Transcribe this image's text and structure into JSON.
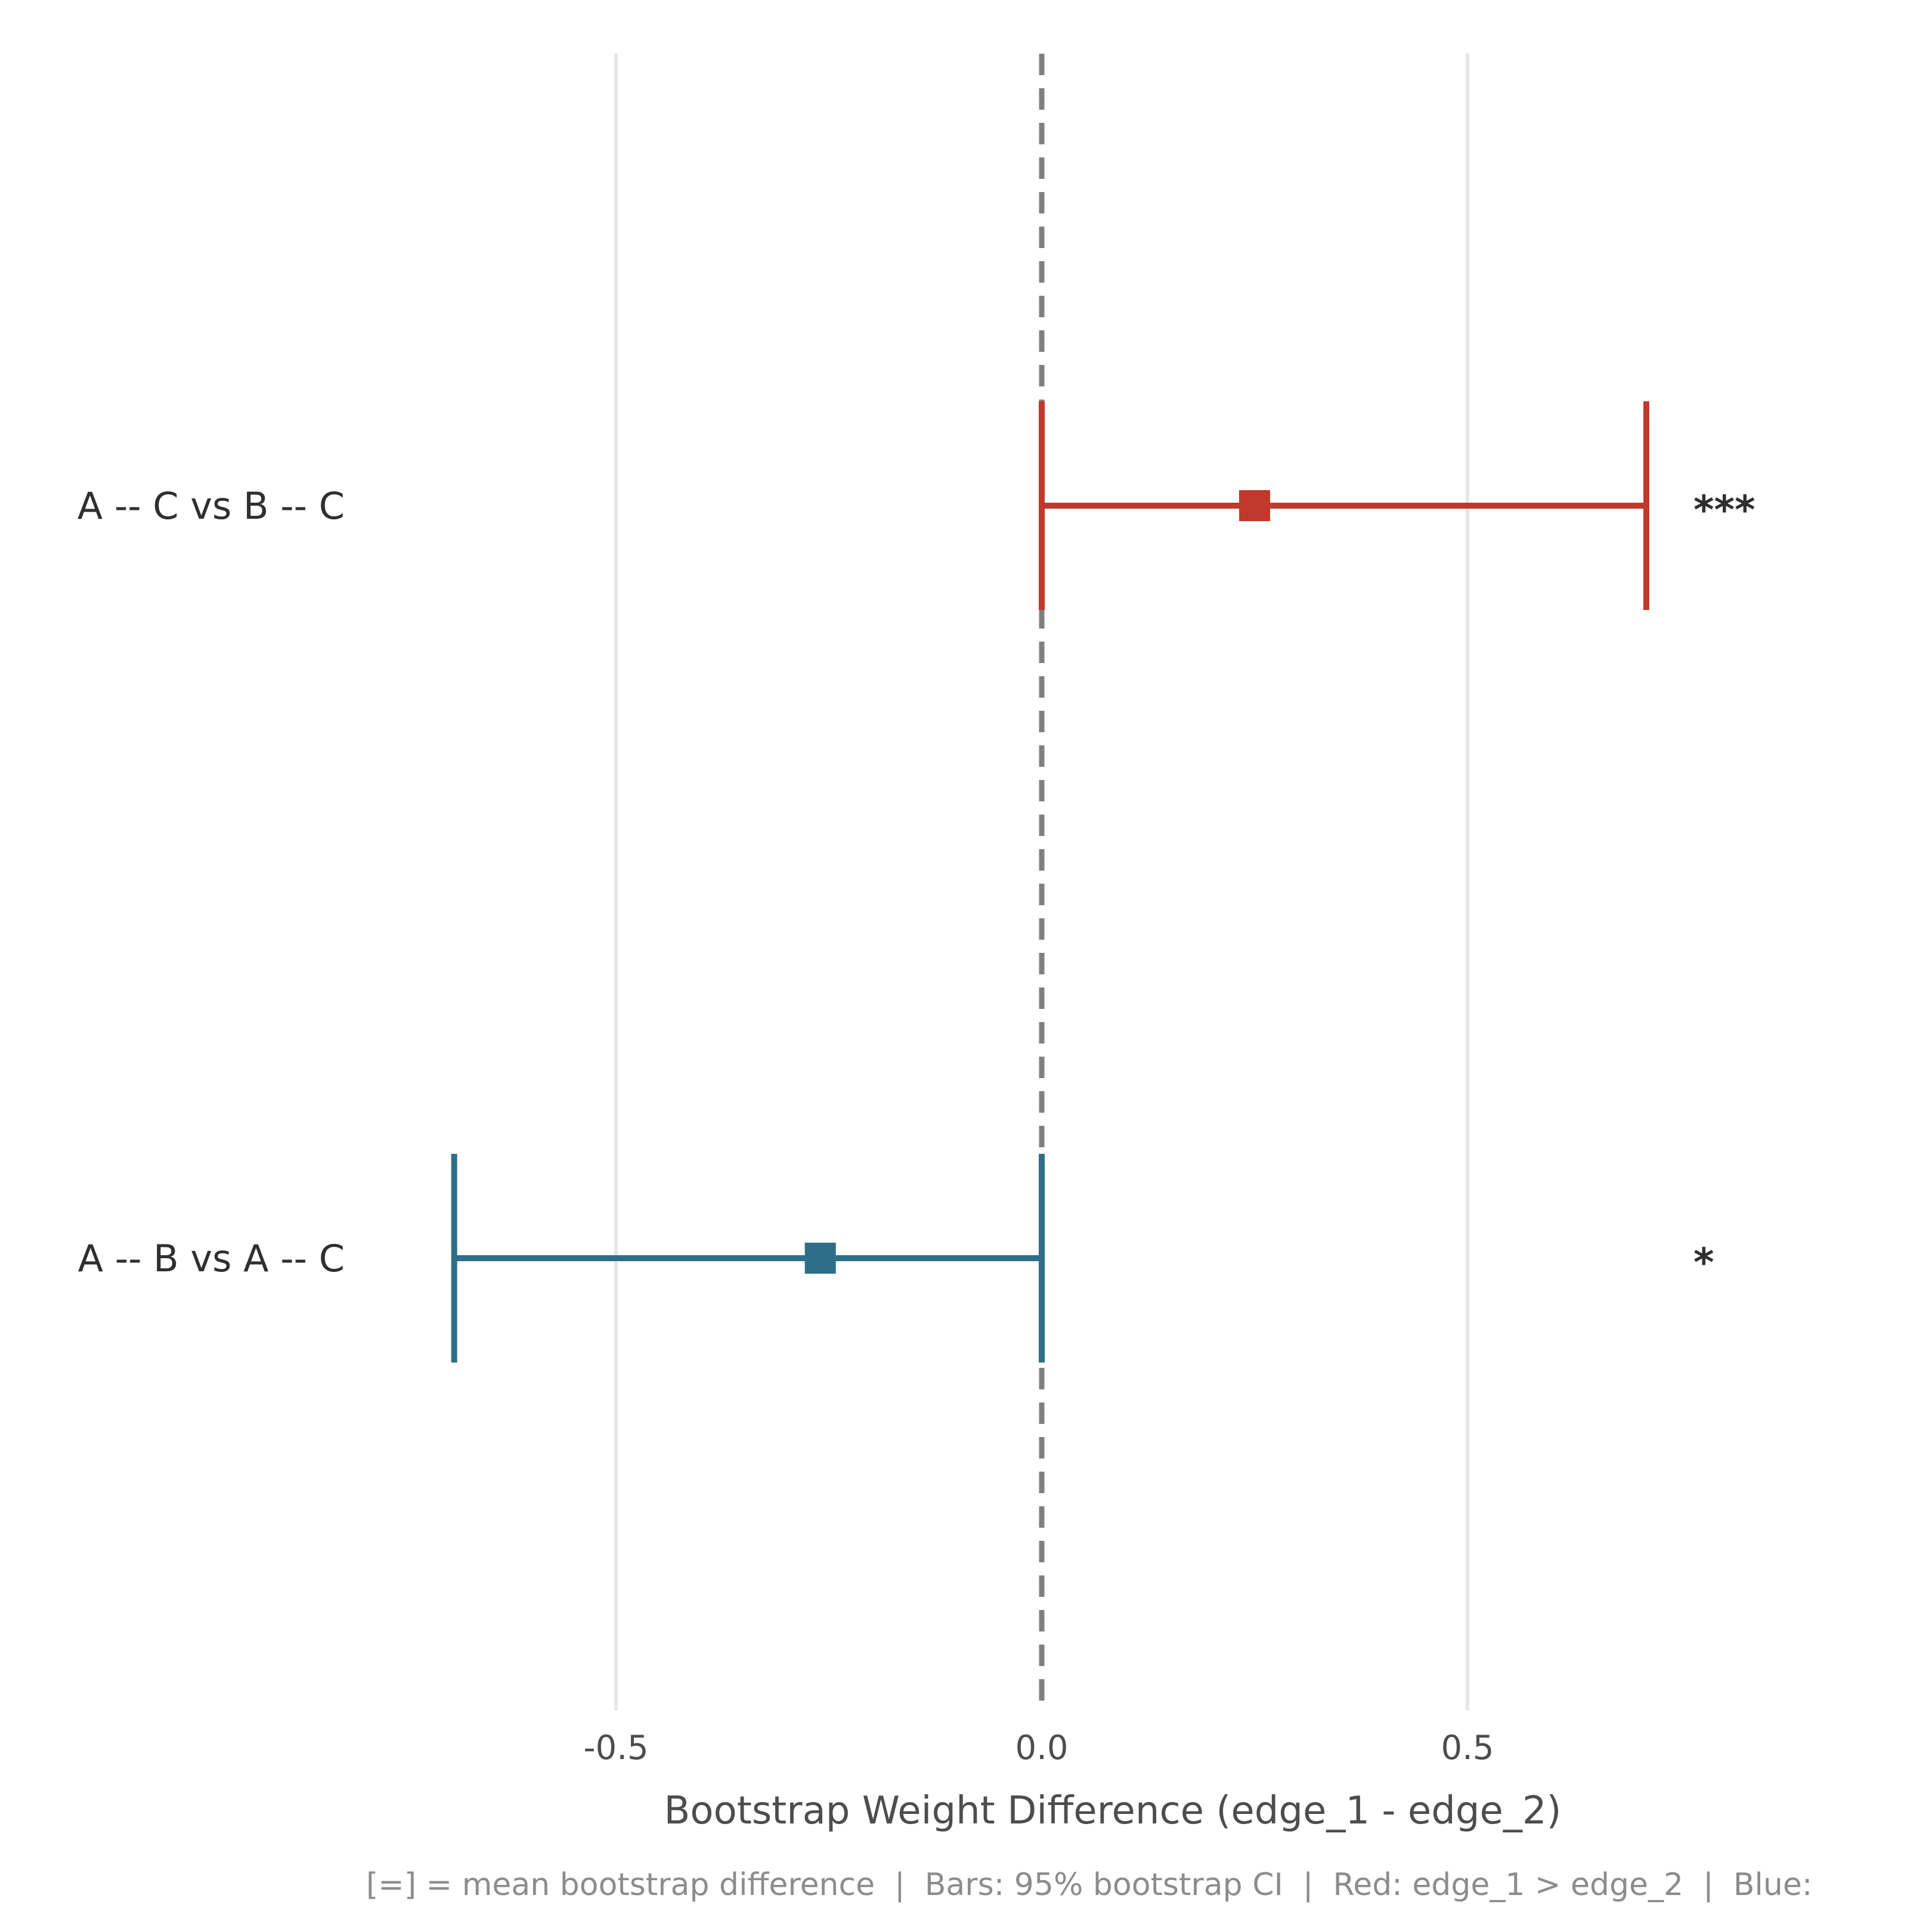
{
  "chart_data": {
    "type": "forest",
    "xlabel": "Bootstrap Weight Difference (edge_1 - edge_2)",
    "x_ticks": [
      -0.5,
      0.0,
      0.5
    ],
    "x_tick_labels": [
      "-0.5",
      "0.0",
      "0.5"
    ],
    "xlim": [
      -1.22,
      1.04
    ],
    "reference_line": 0.0,
    "grid": "vertical",
    "rows": [
      {
        "label": "A -- C vs B -- C",
        "mean": 0.25,
        "ci_low": 0.0,
        "ci_high": 0.71,
        "significance": "***",
        "color": "#c0392b"
      },
      {
        "label": "A -- B vs A -- C",
        "mean": -0.26,
        "ci_low": -0.69,
        "ci_high": 0.0,
        "significance": "*",
        "color": "#2e6e8a"
      }
    ],
    "caption": "[=] = mean bootstrap difference  |  Bars: 95% bootstrap CI  |  Red: edge_1 > edge_2  |  Blue:"
  },
  "colors": {
    "grid": "#e6e6e6",
    "reference": "#808080"
  }
}
